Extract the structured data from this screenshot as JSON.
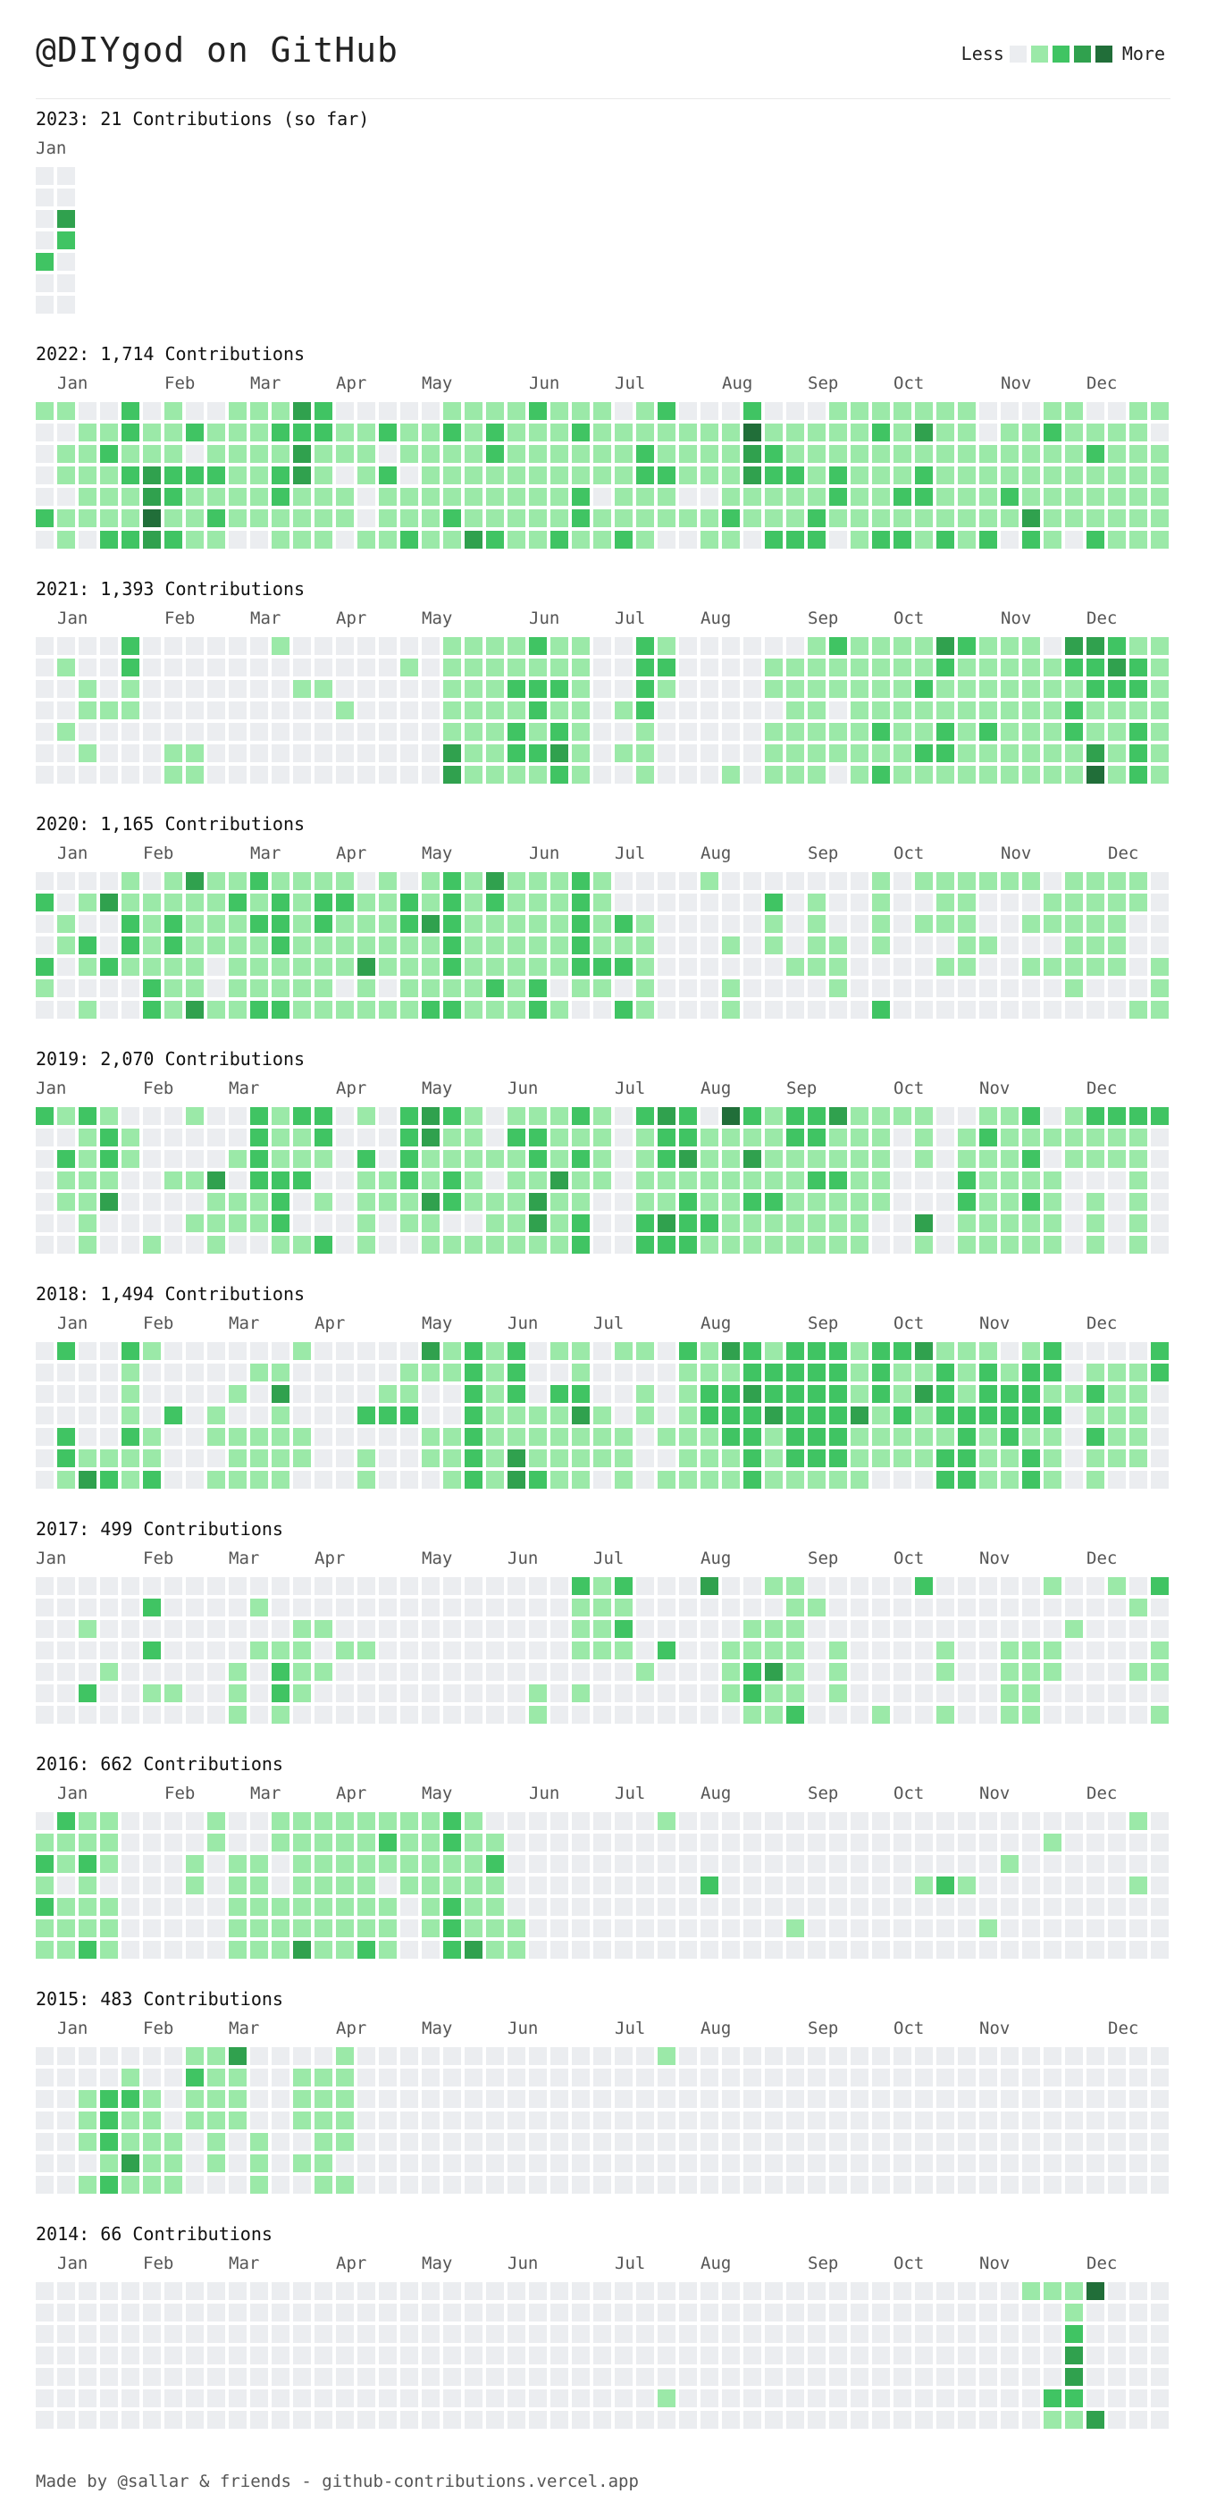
{
  "header": {
    "title": "@DIYgod on GitHub"
  },
  "legend": {
    "less_label": "Less",
    "more_label": "More"
  },
  "colors": [
    "#ebedf0",
    "#9be9a8",
    "#40c463",
    "#30a14e",
    "#216e39"
  ],
  "footer": {
    "text": "Made by @sallar & friends - github-contributions.vercel.app"
  },
  "years": [
    {
      "title": "2023: 21 Contributions (so far)",
      "months": [
        {
          "label": "Jan",
          "week": 0
        }
      ],
      "weeks": [
        "0000200",
        "0032000"
      ]
    },
    {
      "title": "2022: 1,714 Contributions",
      "months": [
        {
          "label": "Jan",
          "week": 1
        },
        {
          "label": "Feb",
          "week": 6
        },
        {
          "label": "Mar",
          "week": 10
        },
        {
          "label": "Apr",
          "week": 14
        },
        {
          "label": "May",
          "week": 18
        },
        {
          "label": "Jun",
          "week": 23
        },
        {
          "label": "Jul",
          "week": 27
        },
        {
          "label": "Aug",
          "week": 32
        },
        {
          "label": "Sep",
          "week": 36
        },
        {
          "label": "Oct",
          "week": 40
        },
        {
          "label": "Nov",
          "week": 45
        },
        {
          "label": "Dec",
          "week": 49
        }
      ],
      "weeks": [
        "1000020",
        "1011011",
        "0111110",
        "0121112",
        "2212112",
        "0113343",
        "1112212",
        "0202111",
        "0112121",
        "1111110",
        "1111110",
        "1212211",
        "3233111",
        "2211111",
        "0110110",
        "0111001",
        "0202111",
        "0110112",
        "0111111",
        "1211121",
        "1111113",
        "1221112",
        "1111111",
        "2111111",
        "1111112",
        "1211221",
        "1111011",
        "0111112",
        "1122111",
        "2112110",
        "0111010",
        "0111011",
        "0111121",
        "2433110",
        "0122112",
        "0112112",
        "0111122",
        "1112210",
        "1111111",
        "1211112",
        "1111212",
        "1312211",
        "1111112",
        "1111111",
        "0011112",
        "0111210",
        "0111132",
        "1211111",
        "1111110",
        "0121112",
        "0111111",
        "1111111",
        "1011111"
      ]
    },
    {
      "title": "2021: 1,393 Contributions",
      "months": [
        {
          "label": "Jan",
          "week": 1
        },
        {
          "label": "Feb",
          "week": 6
        },
        {
          "label": "Mar",
          "week": 10
        },
        {
          "label": "Apr",
          "week": 14
        },
        {
          "label": "May",
          "week": 18
        },
        {
          "label": "Jun",
          "week": 23
        },
        {
          "label": "Jul",
          "week": 27
        },
        {
          "label": "Aug",
          "week": 31
        },
        {
          "label": "Sep",
          "week": 36
        },
        {
          "label": "Oct",
          "week": 40
        },
        {
          "label": "Nov",
          "week": 45
        },
        {
          "label": "Dec",
          "week": 49
        }
      ],
      "weeks": [
        "0000000",
        "0100100",
        "0011010",
        "0001000",
        "2211000",
        "0000000",
        "0000011",
        "0000011",
        "0000000",
        "0000000",
        "0000000",
        "1000000",
        "0010000",
        "0010000",
        "0001000",
        "0000000",
        "0000000",
        "0100000",
        "0000000",
        "1111133",
        "1111111",
        "1111111",
        "1121221",
        "2122121",
        "1121232",
        "1111111",
        "0000000",
        "0001010",
        "2222111",
        "1210000",
        "0000000",
        "0000000",
        "0000001",
        "0000000",
        "0110111",
        "0111111",
        "1111111",
        "2110110",
        "1111111",
        "1111212",
        "1111111",
        "1121121",
        "3211221",
        "2111111",
        "1111211",
        "1111111",
        "1111111",
        "0111111",
        "3212211",
        "3221134",
        "2321111",
        "1221222",
        "1111111"
      ]
    },
    {
      "title": "2020: 1,165 Contributions",
      "months": [
        {
          "label": "Jan",
          "week": 1
        },
        {
          "label": "Feb",
          "week": 5
        },
        {
          "label": "Mar",
          "week": 10
        },
        {
          "label": "Apr",
          "week": 14
        },
        {
          "label": "May",
          "week": 18
        },
        {
          "label": "Jun",
          "week": 23
        },
        {
          "label": "Jul",
          "week": 27
        },
        {
          "label": "Aug",
          "week": 31
        },
        {
          "label": "Sep",
          "week": 36
        },
        {
          "label": "Oct",
          "week": 40
        },
        {
          "label": "Nov",
          "week": 45
        },
        {
          "label": "Dec",
          "week": 50
        }
      ],
      "weeks": [
        "0200210",
        "0011000",
        "0102101",
        "0300200",
        "1122100",
        "0111122",
        "1122111",
        "3111113",
        "1111001",
        "1211111",
        "2121112",
        "1222112",
        "1111111",
        "1221111",
        "1211101",
        "0111311",
        "1111101",
        "0221111",
        "1131112",
        "2222212",
        "1111111",
        "3211121",
        "1111111",
        "1111122",
        "1111101",
        "2222210",
        "1111210",
        "0021202",
        "0011111",
        "0000000",
        "0000000",
        "1000000",
        "0001011",
        "0000000",
        "0211000",
        "0000100",
        "0111100",
        "0001110",
        "0000000",
        "1111002",
        "0000000",
        "1010000",
        "1110100",
        "1111100",
        "1001000",
        "1000000",
        "1010100",
        "0110100",
        "1111110",
        "1111100",
        "1111100",
        "1100001",
        "0000111"
      ]
    },
    {
      "title": "2019: 2,070 Contributions",
      "months": [
        {
          "label": "Jan",
          "week": 0
        },
        {
          "label": "Feb",
          "week": 5
        },
        {
          "label": "Mar",
          "week": 9
        },
        {
          "label": "Apr",
          "week": 14
        },
        {
          "label": "May",
          "week": 18
        },
        {
          "label": "Jun",
          "week": 22
        },
        {
          "label": "Jul",
          "week": 27
        },
        {
          "label": "Aug",
          "week": 31
        },
        {
          "label": "Sep",
          "week": 35
        },
        {
          "label": "Oct",
          "week": 40
        },
        {
          "label": "Nov",
          "week": 44
        },
        {
          "label": "Dec",
          "week": 49
        }
      ],
      "weeks": [
        "2000000",
        "1021100",
        "2111111",
        "1221300",
        "0110000",
        "0000001",
        "0001000",
        "1001010",
        "0003111",
        "0010110",
        "2222110",
        "1112221",
        "2112001",
        "2210102",
        "0000000",
        "1021111",
        "0001100",
        "2222110",
        "3311311",
        "2112201",
        "1111101",
        "0010111",
        "1211111",
        "1221331",
        "1113111",
        "2121122",
        "1111000",
        "0000000",
        "2111122",
        "3221132",
        "2231222",
        "0111121",
        "4111111",
        "2131211",
        "1111211",
        "2211111",
        "2212111",
        "3112111",
        "1111111",
        "1111100",
        "1000000",
        "1110031",
        "0000000",
        "0112211",
        "1211111",
        "1111111",
        "2121211",
        "0101111",
        "1110000",
        "2110111",
        "2110000",
        "2111111",
        "2000000"
      ]
    },
    {
      "title": "2018: 1,494 Contributions",
      "months": [
        {
          "label": "Jan",
          "week": 1
        },
        {
          "label": "Feb",
          "week": 5
        },
        {
          "label": "Mar",
          "week": 9
        },
        {
          "label": "Apr",
          "week": 13
        },
        {
          "label": "May",
          "week": 18
        },
        {
          "label": "Jun",
          "week": 22
        },
        {
          "label": "Jul",
          "week": 26
        },
        {
          "label": "Aug",
          "week": 31
        },
        {
          "label": "Sep",
          "week": 36
        },
        {
          "label": "Oct",
          "week": 40
        },
        {
          "label": "Nov",
          "week": 44
        },
        {
          "label": "Dec",
          "week": 49
        }
      ],
      "weeks": [
        "0000000",
        "2000221",
        "0000013",
        "0000012",
        "2111211",
        "1000112",
        "0002000",
        "0000000",
        "0001101",
        "0010111",
        "0100111",
        "0131111",
        "1000110",
        "0000000",
        "0000000",
        "0002011",
        "0012000",
        "0112000",
        "3100110",
        "1100111",
        "2222222",
        "1111111",
        "2221133",
        "0001112",
        "1021111",
        "1123111",
        "0001110",
        "1000111",
        "1011000",
        "0000101",
        "2111111",
        "1122111",
        "3122211",
        "2232222",
        "1223111",
        "2222221",
        "2222221",
        "2222221",
        "1113111",
        "2221110",
        "2112110",
        "3131110",
        "1222122",
        "1112222",
        "1222111",
        "0122211",
        "1222122",
        "2212111",
        "0010000",
        "0121211",
        "0111110",
        "0111110",
        "2200000"
      ]
    },
    {
      "title": "2017: 499 Contributions",
      "months": [
        {
          "label": "Jan",
          "week": 0
        },
        {
          "label": "Feb",
          "week": 5
        },
        {
          "label": "Mar",
          "week": 9
        },
        {
          "label": "Apr",
          "week": 13
        },
        {
          "label": "May",
          "week": 18
        },
        {
          "label": "Jun",
          "week": 22
        },
        {
          "label": "Jul",
          "week": 26
        },
        {
          "label": "Aug",
          "week": 31
        },
        {
          "label": "Sep",
          "week": 36
        },
        {
          "label": "Oct",
          "week": 40
        },
        {
          "label": "Nov",
          "week": 44
        },
        {
          "label": "Dec",
          "week": 49
        }
      ],
      "weeks": [
        "0000000",
        "0000000",
        "0010020",
        "0000100",
        "0000000",
        "0202010",
        "0000010",
        "0000000",
        "0000000",
        "0000111",
        "0101000",
        "0001221",
        "0011110",
        "0010100",
        "0001000",
        "0001000",
        "0000000",
        "0000000",
        "0000000",
        "0000000",
        "0000000",
        "0000000",
        "0000000",
        "0000011",
        "0000000",
        "2111010",
        "1111000",
        "2121000",
        "0000100",
        "0002000",
        "0000000",
        "3000000",
        "0001110",
        "0011221",
        "1011311",
        "1111112",
        "0100000",
        "0001110",
        "0000000",
        "0000001",
        "0000000",
        "2000000",
        "0001101",
        "0000000",
        "0000000",
        "0001111",
        "0001111",
        "1001100",
        "0010000",
        "0000000",
        "1000000",
        "0100100",
        "2001101"
      ]
    },
    {
      "title": "2016: 662 Contributions",
      "months": [
        {
          "label": "Jan",
          "week": 1
        },
        {
          "label": "Feb",
          "week": 6
        },
        {
          "label": "Mar",
          "week": 10
        },
        {
          "label": "Apr",
          "week": 14
        },
        {
          "label": "May",
          "week": 18
        },
        {
          "label": "Jun",
          "week": 23
        },
        {
          "label": "Jul",
          "week": 27
        },
        {
          "label": "Aug",
          "week": 31
        },
        {
          "label": "Sep",
          "week": 36
        },
        {
          "label": "Oct",
          "week": 40
        },
        {
          "label": "Nov",
          "week": 44
        },
        {
          "label": "Dec",
          "week": 49
        }
      ],
      "weeks": [
        "0121211",
        "2110111",
        "1121112",
        "1110111",
        "0000000",
        "0000000",
        "0000000",
        "0011000",
        "1100000",
        "0011111",
        "0011111",
        "1100111",
        "1111113",
        "1111111",
        "1111111",
        "1111112",
        "1210111",
        "1111000",
        "1111110",
        "2211222",
        "1111113",
        "0121111",
        "0000011",
        "0000000",
        "0000000",
        "0000000",
        "0000000",
        "0000000",
        "0000000",
        "1000000",
        "0000000",
        "0002000",
        "0000000",
        "0000000",
        "0000000",
        "0000010",
        "0000000",
        "0000000",
        "0000000",
        "0000000",
        "0000000",
        "0001000",
        "0002000",
        "0001000",
        "0000010",
        "0010000",
        "0000000",
        "0100000",
        "0000000",
        "0000000",
        "0000000",
        "1001000",
        "0000000"
      ]
    },
    {
      "title": "2015: 483 Contributions",
      "months": [
        {
          "label": "Jan",
          "week": 1
        },
        {
          "label": "Feb",
          "week": 5
        },
        {
          "label": "Mar",
          "week": 9
        },
        {
          "label": "Apr",
          "week": 14
        },
        {
          "label": "May",
          "week": 18
        },
        {
          "label": "Jun",
          "week": 22
        },
        {
          "label": "Jul",
          "week": 27
        },
        {
          "label": "Aug",
          "week": 31
        },
        {
          "label": "Sep",
          "week": 36
        },
        {
          "label": "Oct",
          "week": 40
        },
        {
          "label": "Nov",
          "week": 44
        },
        {
          "label": "Dec",
          "week": 50
        }
      ],
      "weeks": [
        "0000000",
        "0000000",
        "0011101",
        "0022212",
        "0121131",
        "0011111",
        "0000111",
        "1211000",
        "1111110",
        "3111000",
        "0000111",
        "0000000",
        "0111010",
        "0111111",
        "1111101",
        "0000000",
        "0000000",
        "0000000",
        "0000000",
        "0000000",
        "0000000",
        "0000000",
        "0000000",
        "0000000",
        "0000000",
        "0000000",
        "0000000",
        "0000000",
        "0000000",
        "1000000",
        "0000000",
        "0000000",
        "0000000",
        "0000000",
        "0000000",
        "0000000",
        "0000000",
        "0000000",
        "0000000",
        "0000000",
        "0000000",
        "0000000",
        "0000000",
        "0000000",
        "0000000",
        "0000000",
        "0000000",
        "0000000",
        "0000000",
        "0000000",
        "0000000",
        "0000000",
        "0000000"
      ]
    },
    {
      "title": "2014: 66 Contributions",
      "months": [
        {
          "label": "Jan",
          "week": 1
        },
        {
          "label": "Feb",
          "week": 5
        },
        {
          "label": "Mar",
          "week": 9
        },
        {
          "label": "Apr",
          "week": 14
        },
        {
          "label": "May",
          "week": 18
        },
        {
          "label": "Jun",
          "week": 22
        },
        {
          "label": "Jul",
          "week": 27
        },
        {
          "label": "Aug",
          "week": 31
        },
        {
          "label": "Sep",
          "week": 36
        },
        {
          "label": "Oct",
          "week": 40
        },
        {
          "label": "Nov",
          "week": 44
        },
        {
          "label": "Dec",
          "week": 49
        }
      ],
      "weeks": [
        "0000000",
        "0000000",
        "0000000",
        "0000000",
        "0000000",
        "0000000",
        "0000000",
        "0000000",
        "0000000",
        "0000000",
        "0000000",
        "0000000",
        "0000000",
        "0000000",
        "0000000",
        "0000000",
        "0000000",
        "0000000",
        "0000000",
        "0000000",
        "0000000",
        "0000000",
        "0000000",
        "0000000",
        "0000000",
        "0000000",
        "0000000",
        "0000000",
        "0000000",
        "0000010",
        "0000000",
        "0000000",
        "0000000",
        "0000000",
        "0000000",
        "0000000",
        "0000000",
        "0000000",
        "0000000",
        "0000000",
        "0000000",
        "0000000",
        "0000000",
        "0000000",
        "0000000",
        "0000000",
        "1000000",
        "1000021",
        "1123321",
        "4000003",
        "0000000",
        "0000000",
        "0000000"
      ]
    }
  ]
}
